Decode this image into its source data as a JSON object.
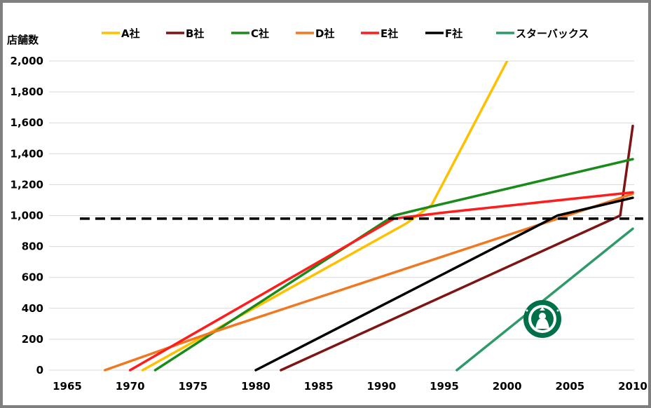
{
  "chart_data": {
    "type": "line",
    "title": "",
    "xlabel": "",
    "ylabel": "店舗数",
    "xlim": [
      1965,
      2010
    ],
    "ylim": [
      0,
      2000
    ],
    "x_ticks": [
      "1965",
      "1970",
      "1975",
      "1980",
      "1985",
      "1990",
      "1995",
      "2000",
      "2005",
      "2010"
    ],
    "y_ticks": [
      "0",
      "200",
      "400",
      "600",
      "800",
      "1,000",
      "1,200",
      "1,400",
      "1,600",
      "1,800",
      "2,000"
    ],
    "grid": "horizontal",
    "legend_position": "top",
    "reference_line": {
      "y": 980,
      "style": "dashed",
      "color": "#000000"
    },
    "series": [
      {
        "name": "A社",
        "color": "#FFC000",
        "points": [
          [
            1971,
            0
          ],
          [
            1992,
            950
          ],
          [
            1994,
            1070
          ],
          [
            2000,
            2000
          ]
        ]
      },
      {
        "name": "B社",
        "color": "#7F1414",
        "points": [
          [
            1982,
            0
          ],
          [
            2009,
            1000
          ],
          [
            2010,
            1580
          ]
        ]
      },
      {
        "name": "C社",
        "color": "#1A8A1A",
        "points": [
          [
            1972,
            0
          ],
          [
            1991,
            1000
          ],
          [
            1993,
            1040
          ],
          [
            2010,
            1365
          ]
        ]
      },
      {
        "name": "D社",
        "color": "#F07820",
        "points": [
          [
            1968,
            0
          ],
          [
            1976,
            230
          ],
          [
            2010,
            1140
          ]
        ]
      },
      {
        "name": "E社",
        "color": "#FF1C1C",
        "points": [
          [
            1970,
            0
          ],
          [
            1991,
            980
          ],
          [
            1995,
            1020
          ],
          [
            2010,
            1150
          ]
        ]
      },
      {
        "name": "F社",
        "color": "#000000",
        "points": [
          [
            1980,
            0
          ],
          [
            2004,
            1000
          ],
          [
            2010,
            1115
          ]
        ]
      },
      {
        "name": "スターバックス",
        "color": "#2E9A6A",
        "points": [
          [
            1996,
            0
          ],
          [
            2010,
            915
          ]
        ]
      }
    ]
  },
  "logo": {
    "name": "starbucks-logo",
    "color": "#00704A"
  }
}
